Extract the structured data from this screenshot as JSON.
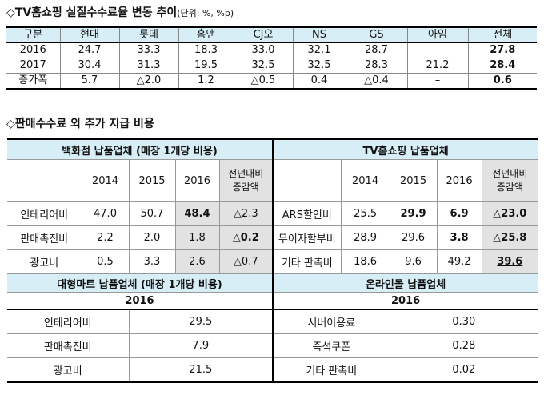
{
  "section1": {
    "title": "◇TV홈쇼핑 실질수수료율 변동 추이",
    "unit": "(단위: %, %p)",
    "headers": [
      "구분",
      "현대",
      "롯데",
      "홈앤",
      "CJ오",
      "NS",
      "GS",
      "아임",
      "전체"
    ],
    "rows": [
      [
        "2016",
        "24.7",
        "33.3",
        "18.3",
        "33.0",
        "32.1",
        "28.7",
        "–",
        "27.8"
      ],
      [
        "2017",
        "30.4",
        "31.3",
        "19.5",
        "32.5",
        "32.5",
        "28.3",
        "21.2",
        "28.4"
      ],
      [
        "증가폭",
        "5.7",
        "△2.0",
        "1.2",
        "△0.5",
        "0.4",
        "△0.4",
        "–",
        "0.6"
      ]
    ]
  },
  "section2": {
    "title": "◇판매수수료 외 추가 지급 비용",
    "dept": {
      "title": "백화점 납품업체 (매장 1개당 비용)",
      "years": [
        "2014",
        "2015",
        "2016"
      ],
      "change_label_1": "전년대비",
      "change_label_2": "증감액",
      "rows": [
        [
          "인테리어비",
          "47.0",
          "50.7",
          "48.4",
          "△2.3"
        ],
        [
          "판매촉진비",
          "2.2",
          "2.0",
          "1.8",
          "△0.2"
        ],
        [
          "광고비",
          "0.5",
          "3.3",
          "2.6",
          "△0.7"
        ]
      ]
    },
    "tv": {
      "title": "TV홈쇼핑 납품업체",
      "years": [
        "2014",
        "2015",
        "2016"
      ],
      "change_label_1": "전년대비",
      "change_label_2": "증감액",
      "rows": [
        [
          "ARS할인비",
          "25.5",
          "29.9",
          "6.9",
          "△23.0"
        ],
        [
          "무이자할부비",
          "28.9",
          "29.6",
          "3.8",
          "△25.8"
        ],
        [
          "기타 판촉비",
          "18.6",
          "9.6",
          "49.2",
          "39.6"
        ]
      ]
    },
    "mart": {
      "title": "대형마트 납품업체 (매장 1개당 비용)",
      "year": "2016",
      "rows": [
        [
          "인테리어비",
          "29.5"
        ],
        [
          "판매촉진비",
          "7.9"
        ],
        [
          "광고비",
          "21.5"
        ]
      ]
    },
    "online": {
      "title": "온라인몰 납품업체",
      "year": "2016",
      "rows": [
        [
          "서버이용료",
          "0.30"
        ],
        [
          "즉석쿠폰",
          "0.28"
        ],
        [
          "기타 판촉비",
          "0.02"
        ]
      ]
    }
  }
}
